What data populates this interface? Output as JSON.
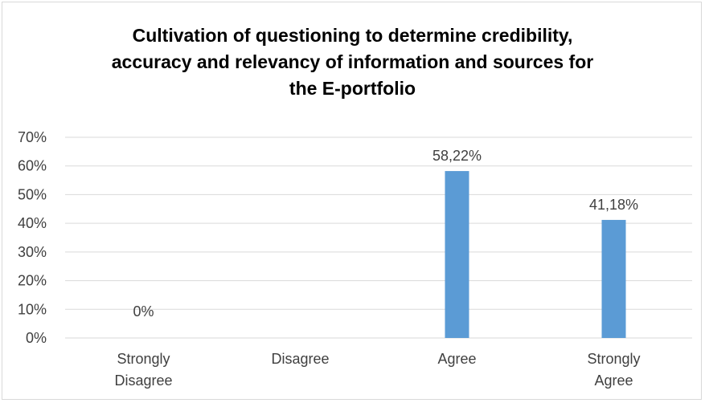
{
  "chart_data": {
    "type": "bar",
    "title_lines": [
      "Cultivation of questioning to determine credibility,",
      "accuracy and relevancy of information and sources for",
      "the E-portfolio"
    ],
    "categories": [
      [
        "Strongly",
        "Disagree"
      ],
      [
        "Disagree"
      ],
      [
        "Agree"
      ],
      [
        "Strongly",
        "Agree"
      ]
    ],
    "values": [
      0,
      null,
      58.22,
      41.18
    ],
    "data_labels": [
      "0%",
      "",
      "58,22%",
      "41,18%"
    ],
    "ylim": [
      0,
      70
    ],
    "yticks": [
      0,
      10,
      20,
      30,
      40,
      50,
      60,
      70
    ],
    "ytick_labels": [
      "0%",
      "10%",
      "20%",
      "30%",
      "40%",
      "50%",
      "60%",
      "70%"
    ],
    "grid": true,
    "bar_color": "#5b9bd5",
    "grid_color": "#d9d9d9"
  }
}
